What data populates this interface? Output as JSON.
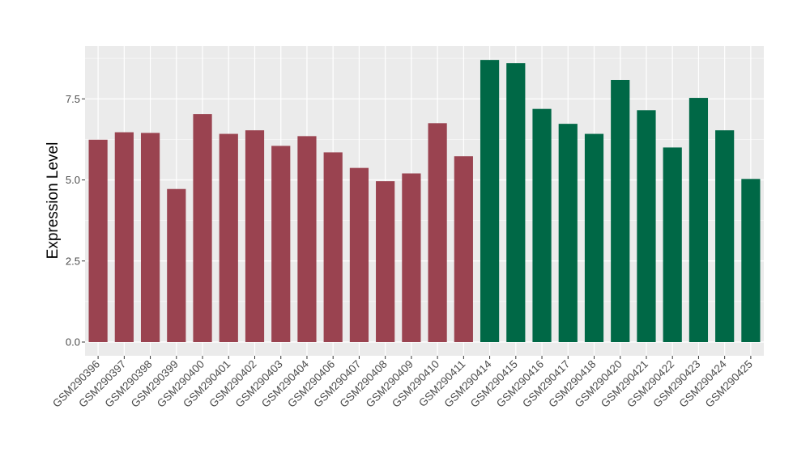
{
  "chart_data": {
    "type": "bar",
    "title": "",
    "xlabel": "",
    "ylabel": "Expression Level",
    "ylim": [
      0,
      8.7
    ],
    "yticks": [
      0.0,
      2.5,
      5.0,
      7.5
    ],
    "ytick_labels": [
      "0.0",
      "2.5",
      "5.0",
      "7.5"
    ],
    "grid": true,
    "legend": "none",
    "categories": [
      "GSM290396",
      "GSM290397",
      "GSM290398",
      "GSM290399",
      "GSM290400",
      "GSM290401",
      "GSM290402",
      "GSM290403",
      "GSM290404",
      "GSM290406",
      "GSM290407",
      "GSM290408",
      "GSM290409",
      "GSM290410",
      "GSM290411",
      "GSM290414",
      "GSM290415",
      "GSM290416",
      "GSM290417",
      "GSM290418",
      "GSM290420",
      "GSM290421",
      "GSM290422",
      "GSM290423",
      "GSM290424",
      "GSM290425"
    ],
    "values": [
      6.24,
      6.47,
      6.45,
      4.72,
      7.03,
      6.42,
      6.53,
      6.05,
      6.35,
      5.85,
      5.37,
      4.96,
      5.2,
      6.75,
      5.73,
      8.7,
      8.6,
      7.19,
      6.73,
      6.42,
      8.08,
      7.15,
      6.0,
      7.53,
      6.53,
      5.03
    ],
    "group_sizes": [
      15,
      11
    ],
    "colors": [
      "#9a4350",
      "#006846"
    ],
    "panel_background": "#ebebeb",
    "gridline_color": "#ffffff"
  }
}
